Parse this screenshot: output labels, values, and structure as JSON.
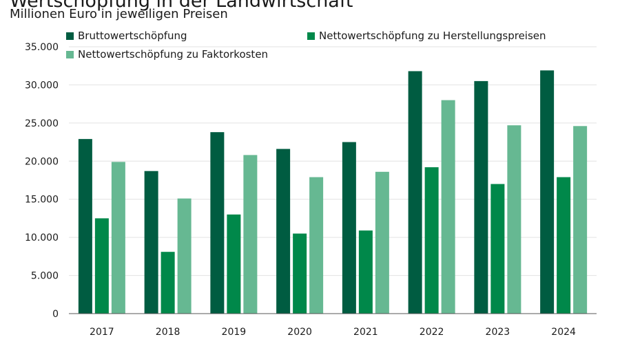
{
  "header": {
    "title": "Wertschöpfung in der Landwirtschaft",
    "subtitle": "Millionen Euro in jeweiligen Preisen"
  },
  "colors": {
    "brutto": "#005c41",
    "netto_herstellung": "#00884a",
    "netto_faktor": "#66b892",
    "grid": "#e2e2e2",
    "axis": "#555555"
  },
  "chart_data": {
    "type": "bar",
    "title": "Wertschöpfung in der Landwirtschaft",
    "subtitle": "Millionen Euro in jeweiligen Preisen",
    "categories": [
      "2017",
      "2018",
      "2019",
      "2020",
      "2021",
      "2022",
      "2023",
      "2024"
    ],
    "series": [
      {
        "name": "Bruttowertschöpfung",
        "color": "#005c41",
        "values": [
          22900,
          18700,
          23800,
          21600,
          22500,
          31800,
          30500,
          31900
        ]
      },
      {
        "name": "Nettowertschöpfung zu Herstellungspreisen",
        "color": "#00884a",
        "values": [
          12500,
          8100,
          13000,
          10500,
          10900,
          19200,
          17000,
          17900
        ]
      },
      {
        "name": "Nettowertschöpfung zu Faktorkosten",
        "color": "#66b892",
        "values": [
          19900,
          15100,
          20800,
          17900,
          18600,
          28000,
          24700,
          24600
        ]
      }
    ],
    "yticks": [
      "0",
      "5.000",
      "10.000",
      "15.000",
      "20.000",
      "25.000",
      "30.000",
      "35.000"
    ],
    "ylim": [
      0,
      35000
    ],
    "grid": true,
    "legend_position": "top"
  }
}
